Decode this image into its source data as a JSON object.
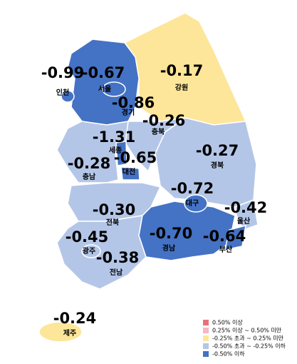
{
  "regions": [
    {
      "name": "인천",
      "value": "-0.99",
      "color": "#4472c4"
    },
    {
      "name": "서울",
      "value": "-0.67",
      "color": "#4472c4"
    },
    {
      "name": "경기",
      "value": "-0.86",
      "color": "#4472c4"
    },
    {
      "name": "강원",
      "value": "-0.17",
      "color": "#fde699"
    },
    {
      "name": "충북",
      "value": "-0.26",
      "color": "#b4c6e7"
    },
    {
      "name": "세종",
      "value": "-1.31",
      "color": "#4472c4"
    },
    {
      "name": "대전",
      "value": "-0.65",
      "color": "#4472c4"
    },
    {
      "name": "충남",
      "value": "-0.28",
      "color": "#b4c6e7"
    },
    {
      "name": "경북",
      "value": "-0.27",
      "color": "#b4c6e7"
    },
    {
      "name": "대구",
      "value": "-0.72",
      "color": "#4472c4"
    },
    {
      "name": "울산",
      "value": "-0.42",
      "color": "#b4c6e7"
    },
    {
      "name": "전북",
      "value": "-0.30",
      "color": "#b4c6e7"
    },
    {
      "name": "경남",
      "value": "-0.70",
      "color": "#4472c4"
    },
    {
      "name": "부산",
      "value": "-0.64",
      "color": "#4472c4"
    },
    {
      "name": "광주",
      "value": "-0.45",
      "color": "#b4c6e7"
    },
    {
      "name": "전남",
      "value": "-0.38",
      "color": "#b4c6e7"
    },
    {
      "name": "제주",
      "value": "-0.24",
      "color": "#fde699"
    }
  ],
  "legend": [
    {
      "color": "#e8707a",
      "label": "0.50% 이상"
    },
    {
      "color": "#f4b8c0",
      "label": "0.25% 이상 ~ 0.50% 미만"
    },
    {
      "color": "#fde699",
      "label": "-0.25% 초과 ~ 0.25% 미만"
    },
    {
      "color": "#b4c6e7",
      "label": "-0.50% 초과 ~ -0.25% 이하"
    },
    {
      "color": "#4472c4",
      "label": "-0.50% 이하"
    }
  ]
}
